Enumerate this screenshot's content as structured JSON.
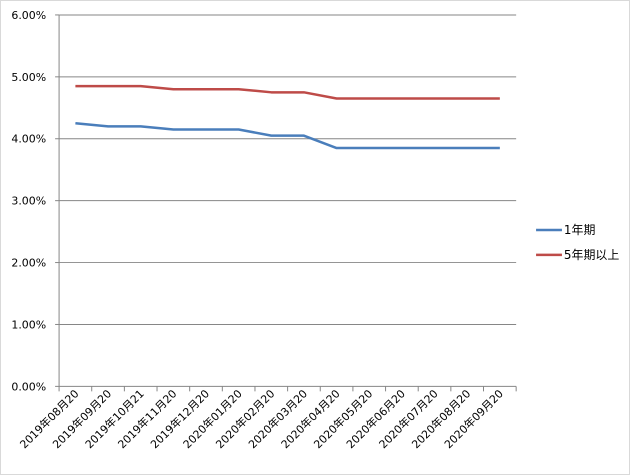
{
  "chart_data": {
    "type": "line",
    "title": "",
    "xlabel": "",
    "ylabel": "",
    "categories": [
      "2019年08月20",
      "2019年09月20",
      "2019年10月21",
      "2019年11月20",
      "2019年12月20",
      "2020年01月20",
      "2020年02月20",
      "2020年03月20",
      "2020年04月20",
      "2020年05月20",
      "2020年06月20",
      "2020年07月20",
      "2020年08月20",
      "2020年09月20"
    ],
    "ylim": [
      0,
      0.06
    ],
    "yticks": [
      "0.00%",
      "1.00%",
      "2.00%",
      "3.00%",
      "4.00%",
      "5.00%",
      "6.00%"
    ],
    "grid": true,
    "legend_position": "right",
    "series": [
      {
        "name": "1年期",
        "color": "#4a7ebb",
        "values": [
          0.0425,
          0.042,
          0.042,
          0.0415,
          0.0415,
          0.0415,
          0.0405,
          0.0405,
          0.0385,
          0.0385,
          0.0385,
          0.0385,
          0.0385,
          0.0385
        ]
      },
      {
        "name": "5年期以上",
        "color": "#be4b48",
        "values": [
          0.0485,
          0.0485,
          0.0485,
          0.048,
          0.048,
          0.048,
          0.0475,
          0.0475,
          0.0465,
          0.0465,
          0.0465,
          0.0465,
          0.0465,
          0.0465
        ]
      }
    ]
  }
}
